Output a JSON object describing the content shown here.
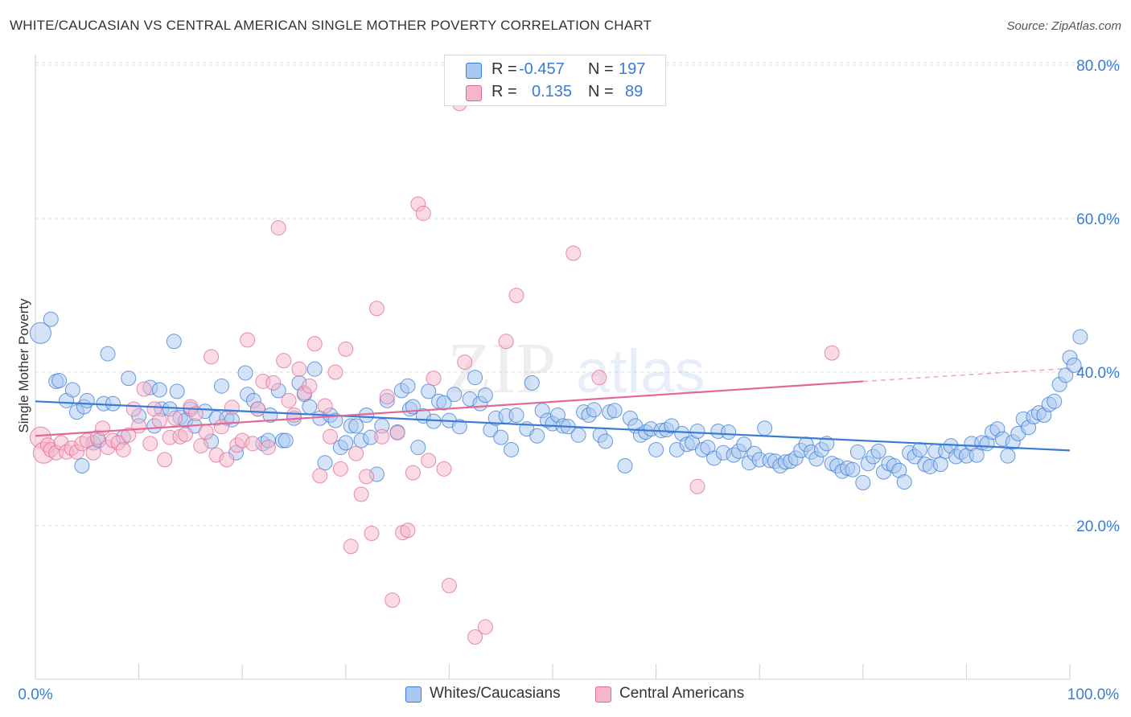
{
  "title": "WHITE/CAUCASIAN VS CENTRAL AMERICAN SINGLE MOTHER POVERTY CORRELATION CHART",
  "source": "Source: ZipAtlas.com",
  "watermark": {
    "part1": "ZIP",
    "part2": "atlas"
  },
  "legend_stats": [
    {
      "r_label": "R =",
      "r_value": "-0.457",
      "n_label": "N =",
      "n_value": "197",
      "color": "#a9c8f0"
    },
    {
      "r_label": "R =",
      "r_value": "0.135",
      "n_label": "N =",
      "n_value": "89",
      "color": "#f6b6c9"
    }
  ],
  "bottom_legend": [
    {
      "label": "Whites/Caucasians",
      "color": "#a9c8f0"
    },
    {
      "label": "Central Americans",
      "color": "#f6b6c9"
    }
  ],
  "x_tick_labels": {
    "min": "0.0%",
    "max": "100.0%"
  },
  "y_tick_labels": [
    "20.0%",
    "40.0%",
    "60.0%",
    "80.0%"
  ],
  "chart_data": {
    "type": "scatter",
    "title": "WHITE/CAUCASIAN VS CENTRAL AMERICAN SINGLE MOTHER POVERTY CORRELATION CHART",
    "xlabel": "",
    "ylabel": "Single Mother Poverty",
    "xlim": [
      0,
      100
    ],
    "ylim": [
      0,
      82
    ],
    "y_ticks": [
      20,
      40,
      60,
      80
    ],
    "grid": true,
    "colors": {
      "blue": "#3a7bd5",
      "pink": "#e26894",
      "blue_fill": "#a9c8f0",
      "pink_fill": "#f6b6c9",
      "tick_text": "#3a7bd5"
    },
    "series": [
      {
        "name": "Whites/Caucasians",
        "r": -0.457,
        "n": 197,
        "trend": {
          "x": [
            0,
            100
          ],
          "y": [
            36.2,
            29.8
          ]
        },
        "points": [
          [
            0.5,
            45.1
          ],
          [
            1.5,
            46.9
          ],
          [
            2.0,
            38.8
          ],
          [
            2.3,
            38.9
          ],
          [
            3.0,
            36.3
          ],
          [
            3.6,
            37.7
          ],
          [
            4.0,
            34.8
          ],
          [
            4.5,
            27.8
          ],
          [
            4.7,
            35.5
          ],
          [
            5.0,
            36.3
          ],
          [
            5.6,
            30.8
          ],
          [
            6.1,
            31.1
          ],
          [
            6.6,
            35.9
          ],
          [
            7.0,
            42.4
          ],
          [
            7.5,
            35.9
          ],
          [
            8.5,
            31.5
          ],
          [
            9.0,
            39.2
          ],
          [
            10.0,
            34.3
          ],
          [
            11.1,
            38.0
          ],
          [
            11.5,
            33.0
          ],
          [
            12.0,
            37.7
          ],
          [
            12.2,
            35.2
          ],
          [
            13.0,
            35.2
          ],
          [
            13.4,
            44.0
          ],
          [
            13.7,
            37.5
          ],
          [
            14.0,
            34.1
          ],
          [
            14.5,
            33.7
          ],
          [
            15.0,
            35.2
          ],
          [
            15.4,
            33.0
          ],
          [
            16.4,
            34.9
          ],
          [
            17.0,
            31.0
          ],
          [
            17.5,
            34.0
          ],
          [
            18.0,
            38.2
          ],
          [
            18.5,
            34.0
          ],
          [
            19.0,
            33.8
          ],
          [
            19.4,
            29.5
          ],
          [
            20.3,
            39.9
          ],
          [
            20.5,
            37.1
          ],
          [
            21.1,
            36.3
          ],
          [
            21.5,
            35.2
          ],
          [
            22.0,
            30.7
          ],
          [
            22.5,
            31.1
          ],
          [
            22.7,
            34.4
          ],
          [
            23.5,
            37.6
          ],
          [
            23.9,
            31.1
          ],
          [
            24.2,
            31.1
          ],
          [
            25.0,
            34.0
          ],
          [
            25.5,
            38.6
          ],
          [
            26.0,
            37.1
          ],
          [
            26.5,
            35.5
          ],
          [
            27.0,
            40.4
          ],
          [
            27.5,
            34.0
          ],
          [
            28.0,
            28.2
          ],
          [
            28.5,
            34.4
          ],
          [
            29.0,
            33.7
          ],
          [
            29.5,
            30.2
          ],
          [
            30.0,
            30.8
          ],
          [
            30.5,
            33.0
          ],
          [
            31.0,
            33.0
          ],
          [
            31.5,
            31.1
          ],
          [
            32.0,
            34.4
          ],
          [
            32.4,
            31.5
          ],
          [
            33.0,
            26.7
          ],
          [
            33.5,
            33.0
          ],
          [
            34.0,
            36.3
          ],
          [
            35.0,
            32.2
          ],
          [
            35.4,
            37.6
          ],
          [
            36.0,
            38.2
          ],
          [
            36.2,
            35.2
          ],
          [
            36.5,
            35.5
          ],
          [
            37.0,
            30.2
          ],
          [
            37.5,
            34.3
          ],
          [
            38.0,
            37.5
          ],
          [
            38.5,
            33.6
          ],
          [
            39.0,
            36.2
          ],
          [
            39.5,
            36.0
          ],
          [
            40.0,
            33.7
          ],
          [
            40.5,
            37.1
          ],
          [
            41.0,
            32.9
          ],
          [
            42.0,
            36.5
          ],
          [
            42.5,
            39.3
          ],
          [
            43.0,
            35.9
          ],
          [
            43.5,
            37.0
          ],
          [
            44.0,
            32.5
          ],
          [
            44.5,
            34.0
          ],
          [
            45.0,
            31.5
          ],
          [
            45.5,
            34.3
          ],
          [
            46.0,
            29.9
          ],
          [
            46.5,
            34.4
          ],
          [
            47.5,
            32.6
          ],
          [
            48.0,
            38.6
          ],
          [
            48.5,
            31.7
          ],
          [
            49.0,
            35.0
          ],
          [
            49.5,
            33.7
          ],
          [
            50.0,
            33.3
          ],
          [
            50.5,
            34.4
          ],
          [
            51.0,
            33.0
          ],
          [
            51.5,
            32.9
          ],
          [
            52.5,
            31.8
          ],
          [
            53.0,
            34.8
          ],
          [
            53.5,
            34.4
          ],
          [
            54.0,
            35.1
          ],
          [
            54.6,
            31.8
          ],
          [
            55.1,
            31.0
          ],
          [
            55.5,
            34.8
          ],
          [
            56.0,
            35.0
          ],
          [
            57.0,
            27.8
          ],
          [
            57.5,
            34.0
          ],
          [
            58.0,
            33.0
          ],
          [
            58.5,
            31.8
          ],
          [
            59.0,
            32.2
          ],
          [
            59.5,
            32.6
          ],
          [
            60.0,
            29.9
          ],
          [
            60.5,
            32.4
          ],
          [
            61.0,
            32.5
          ],
          [
            61.5,
            33.0
          ],
          [
            62.0,
            29.9
          ],
          [
            62.5,
            32.0
          ],
          [
            63.0,
            30.6
          ],
          [
            63.5,
            30.8
          ],
          [
            64.0,
            32.3
          ],
          [
            64.5,
            29.9
          ],
          [
            65.0,
            30.2
          ],
          [
            65.6,
            28.8
          ],
          [
            66.0,
            32.3
          ],
          [
            66.5,
            29.5
          ],
          [
            67.0,
            32.2
          ],
          [
            67.5,
            29.2
          ],
          [
            68.0,
            29.7
          ],
          [
            68.5,
            30.6
          ],
          [
            69.0,
            28.2
          ],
          [
            69.5,
            29.4
          ],
          [
            70.0,
            28.6
          ],
          [
            70.5,
            32.7
          ],
          [
            71.0,
            28.5
          ],
          [
            71.5,
            28.4
          ],
          [
            72.0,
            27.8
          ],
          [
            72.5,
            28.3
          ],
          [
            73.0,
            28.4
          ],
          [
            73.5,
            28.8
          ],
          [
            74.0,
            29.8
          ],
          [
            74.5,
            30.6
          ],
          [
            75.0,
            29.6
          ],
          [
            75.5,
            28.7
          ],
          [
            76.0,
            29.9
          ],
          [
            76.5,
            30.7
          ],
          [
            77.0,
            28.1
          ],
          [
            77.5,
            27.8
          ],
          [
            78.0,
            27.1
          ],
          [
            78.5,
            27.5
          ],
          [
            79.0,
            27.3
          ],
          [
            79.5,
            29.6
          ],
          [
            80.0,
            25.6
          ],
          [
            80.5,
            28.1
          ],
          [
            81.0,
            29.0
          ],
          [
            81.5,
            29.7
          ],
          [
            82.0,
            27.0
          ],
          [
            82.5,
            28.1
          ],
          [
            83.0,
            27.8
          ],
          [
            83.5,
            27.2
          ],
          [
            84.0,
            25.7
          ],
          [
            84.5,
            29.5
          ],
          [
            85.0,
            29.0
          ],
          [
            85.5,
            29.9
          ],
          [
            86.0,
            28.0
          ],
          [
            86.5,
            27.7
          ],
          [
            87.0,
            29.7
          ],
          [
            87.5,
            28.0
          ],
          [
            88.0,
            29.7
          ],
          [
            88.5,
            30.4
          ],
          [
            89.0,
            29.0
          ],
          [
            89.5,
            29.6
          ],
          [
            90.0,
            29.1
          ],
          [
            90.5,
            30.7
          ],
          [
            91.0,
            29.2
          ],
          [
            91.5,
            30.8
          ],
          [
            92.0,
            30.7
          ],
          [
            92.5,
            32.2
          ],
          [
            93.0,
            32.6
          ],
          [
            93.5,
            31.3
          ],
          [
            94.0,
            29.1
          ],
          [
            94.5,
            30.9
          ],
          [
            95.0,
            32.0
          ],
          [
            95.5,
            33.9
          ],
          [
            96.0,
            32.8
          ],
          [
            96.5,
            34.2
          ],
          [
            97.0,
            34.7
          ],
          [
            97.5,
            34.4
          ],
          [
            98.0,
            35.8
          ],
          [
            98.5,
            36.2
          ],
          [
            99.0,
            38.4
          ],
          [
            99.6,
            39.6
          ],
          [
            100.0,
            41.9
          ],
          [
            100.4,
            40.9
          ],
          [
            101.0,
            44.6
          ]
        ]
      },
      {
        "name": "Central Americans",
        "r": 0.135,
        "n": 89,
        "trend": {
          "x": [
            0,
            80
          ],
          "y": [
            31.7,
            38.8
          ]
        },
        "trend_dashed": {
          "x": [
            80,
            100
          ],
          "y": [
            38.8,
            40.5
          ]
        },
        "points": [
          [
            0.5,
            31.5
          ],
          [
            0.8,
            29.5
          ],
          [
            1.2,
            30.5
          ],
          [
            1.5,
            29.9
          ],
          [
            2.0,
            29.5
          ],
          [
            2.5,
            30.8
          ],
          [
            3.0,
            29.6
          ],
          [
            3.5,
            30.1
          ],
          [
            4.0,
            29.6
          ],
          [
            4.5,
            30.7
          ],
          [
            5.0,
            31.1
          ],
          [
            5.6,
            29.5
          ],
          [
            6.0,
            31.5
          ],
          [
            6.5,
            32.7
          ],
          [
            7.0,
            30.2
          ],
          [
            7.5,
            31.1
          ],
          [
            8.0,
            30.8
          ],
          [
            8.5,
            29.9
          ],
          [
            9.0,
            31.8
          ],
          [
            9.5,
            35.2
          ],
          [
            10.0,
            33.0
          ],
          [
            10.5,
            37.8
          ],
          [
            11.1,
            30.7
          ],
          [
            11.5,
            35.2
          ],
          [
            12.0,
            33.7
          ],
          [
            12.5,
            28.6
          ],
          [
            13.0,
            31.5
          ],
          [
            13.5,
            34.0
          ],
          [
            14.0,
            31.6
          ],
          [
            14.5,
            31.9
          ],
          [
            15.0,
            35.5
          ],
          [
            15.5,
            34.6
          ],
          [
            16.0,
            30.4
          ],
          [
            16.5,
            32.2
          ],
          [
            17.0,
            42.0
          ],
          [
            17.5,
            29.2
          ],
          [
            18.0,
            32.9
          ],
          [
            18.5,
            28.6
          ],
          [
            19.0,
            35.4
          ],
          [
            19.5,
            30.5
          ],
          [
            20.0,
            31.1
          ],
          [
            20.5,
            44.2
          ],
          [
            21.0,
            30.7
          ],
          [
            21.5,
            35.2
          ],
          [
            22.0,
            38.8
          ],
          [
            22.5,
            30.2
          ],
          [
            23.0,
            38.6
          ],
          [
            23.5,
            58.8
          ],
          [
            24.0,
            41.5
          ],
          [
            24.5,
            36.3
          ],
          [
            25.0,
            34.4
          ],
          [
            25.5,
            40.4
          ],
          [
            26.0,
            37.3
          ],
          [
            26.5,
            38.2
          ],
          [
            27.0,
            43.7
          ],
          [
            27.5,
            26.5
          ],
          [
            28.0,
            35.6
          ],
          [
            28.5,
            31.6
          ],
          [
            29.0,
            40.0
          ],
          [
            29.5,
            27.4
          ],
          [
            30.0,
            43.0
          ],
          [
            30.5,
            17.3
          ],
          [
            31.0,
            29.4
          ],
          [
            31.5,
            24.1
          ],
          [
            32.0,
            26.4
          ],
          [
            32.5,
            19.0
          ],
          [
            33.0,
            48.3
          ],
          [
            33.5,
            31.6
          ],
          [
            34.0,
            36.8
          ],
          [
            34.5,
            10.3
          ],
          [
            35.0,
            32.1
          ],
          [
            35.5,
            19.1
          ],
          [
            36.0,
            19.4
          ],
          [
            36.5,
            26.9
          ],
          [
            37.0,
            61.9
          ],
          [
            37.5,
            60.7
          ],
          [
            38.0,
            28.5
          ],
          [
            38.5,
            39.2
          ],
          [
            39.5,
            27.4
          ],
          [
            40.0,
            12.2
          ],
          [
            41.0,
            75.0
          ],
          [
            41.5,
            41.3
          ],
          [
            42.5,
            5.5
          ],
          [
            43.5,
            6.8
          ],
          [
            45.5,
            44.0
          ],
          [
            46.5,
            50.0
          ],
          [
            52.0,
            55.5
          ],
          [
            54.5,
            39.3
          ],
          [
            64.0,
            25.1
          ],
          [
            77.0,
            42.5
          ]
        ]
      }
    ]
  }
}
